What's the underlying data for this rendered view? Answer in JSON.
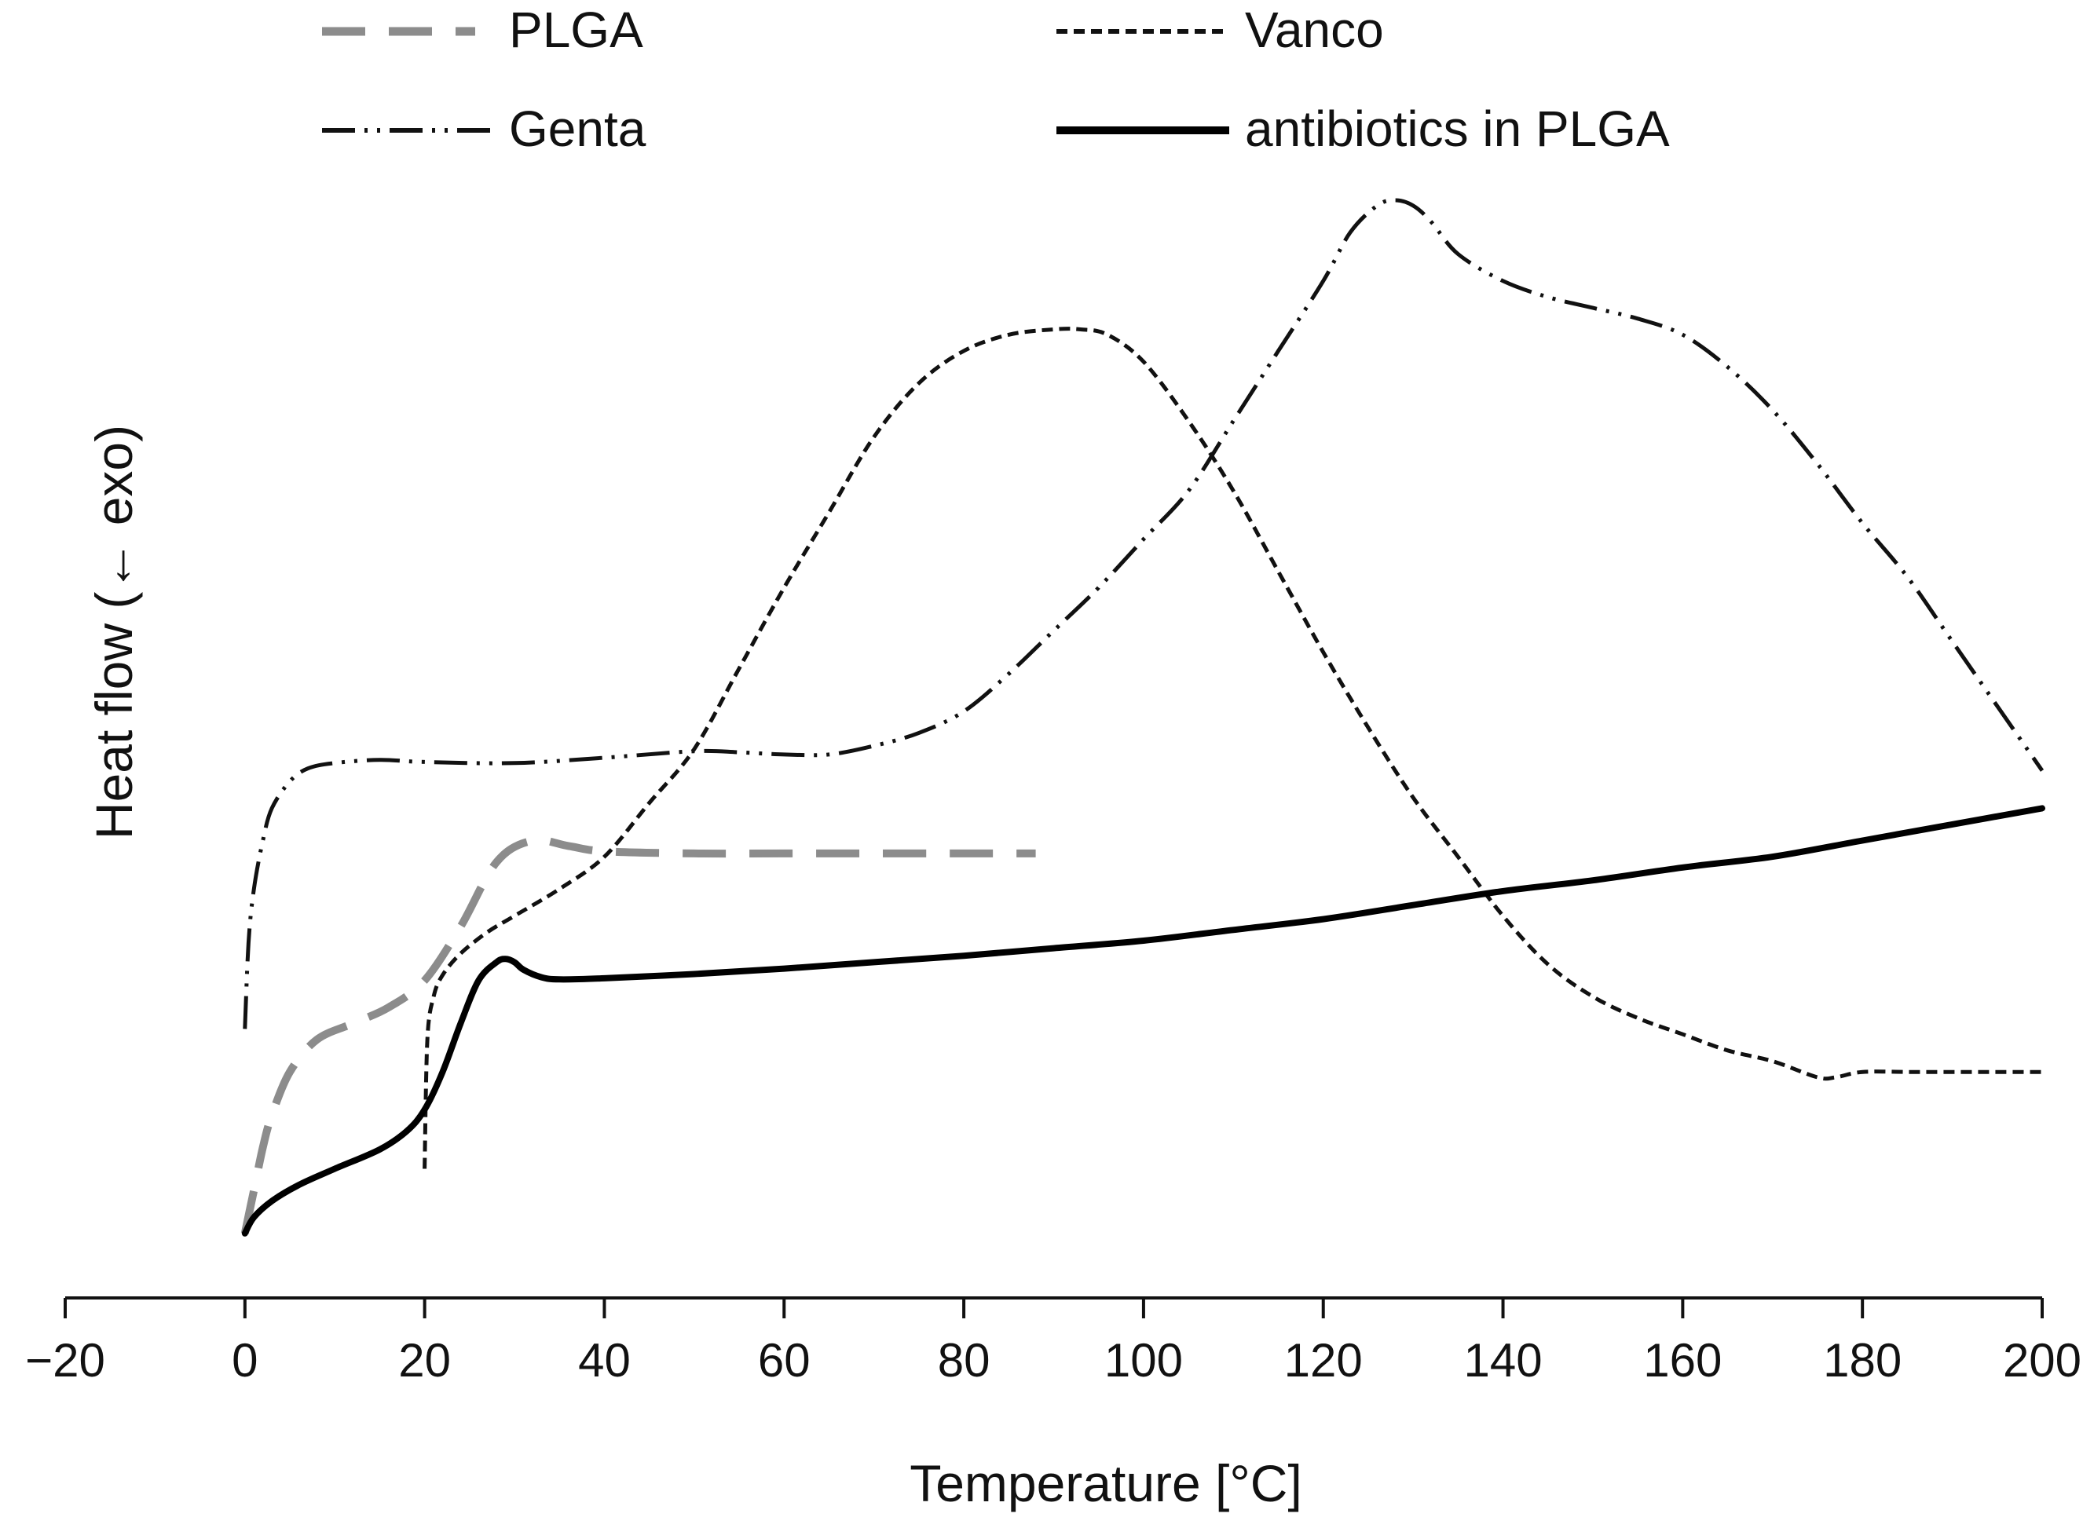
{
  "chart_data": {
    "type": "line",
    "title": "",
    "xlabel": "Temperature [°C]",
    "ylabel": "Heat flow (← exo)",
    "xlim": [
      -20,
      200
    ],
    "ylim": [
      0,
      100
    ],
    "xticks": [
      -20,
      0,
      20,
      40,
      60,
      80,
      100,
      120,
      140,
      160,
      180,
      200
    ],
    "xtick_labels": [
      "−20",
      "0",
      "20",
      "40",
      "60",
      "80",
      "100",
      "120",
      "140",
      "160",
      "180",
      "200"
    ],
    "y_ticks_shown": false,
    "grid": false,
    "legend_position": "top",
    "series": [
      {
        "name": "PLGA",
        "color": "#8c8c8c",
        "style": "long-dash",
        "x": [
          0,
          1,
          2,
          3,
          5,
          8,
          12,
          16,
          20,
          24,
          28,
          32,
          36,
          40,
          50,
          60,
          70,
          80,
          88
        ],
        "y": [
          6,
          10,
          14,
          17,
          21,
          24,
          25.5,
          27,
          29.5,
          34.5,
          40.5,
          42.5,
          42,
          41.5,
          41.3,
          41.3,
          41.3,
          41.3,
          41.3
        ]
      },
      {
        "name": "Vanco",
        "color": "#111111",
        "style": "short-dash",
        "x": [
          20,
          20.3,
          21,
          22,
          24,
          27,
          30,
          35,
          40,
          45,
          50,
          55,
          60,
          65,
          70,
          75,
          80,
          85,
          90,
          93,
          96,
          100,
          105,
          110,
          115,
          120,
          125,
          130,
          135,
          140,
          145,
          150,
          155,
          160,
          165,
          170,
          175,
          177,
          180,
          185,
          190,
          195,
          200
        ],
        "y": [
          12,
          24,
          28,
          30,
          32,
          34,
          35.5,
          38,
          41,
          46,
          51,
          58.5,
          66,
          73,
          80,
          85,
          88,
          89.5,
          90,
          90,
          89.5,
          87,
          81.5,
          75,
          67.5,
          60,
          53,
          46.5,
          41,
          35.5,
          31,
          28,
          26,
          24.5,
          23,
          22,
          20.5,
          20.5,
          21,
          21,
          21,
          21,
          21
        ]
      },
      {
        "name": "Genta",
        "color": "#111111",
        "style": "dash-dot-dot",
        "x": [
          0,
          0.4,
          1,
          2,
          3,
          5,
          7,
          10,
          15,
          20,
          30,
          40,
          50,
          55,
          60,
          65,
          70,
          75,
          80,
          85,
          90,
          95,
          100,
          105,
          110,
          115,
          120,
          123,
          126,
          128,
          130,
          132,
          135,
          140,
          145,
          150,
          155,
          160,
          165,
          170,
          175,
          180,
          185,
          190,
          195,
          200
        ],
        "y": [
          25,
          33,
          38,
          42.5,
          45.5,
          48,
          49.2,
          49.7,
          50,
          49.8,
          49.7,
          50.2,
          50.8,
          50.7,
          50.5,
          50.5,
          51.3,
          52.5,
          54.5,
          58,
          62,
          66,
          70.5,
          75,
          81.5,
          88,
          94.5,
          99,
          101.5,
          102,
          101.5,
          100,
          97,
          94.5,
          93,
          92,
          91,
          89.5,
          86.5,
          82.5,
          77.5,
          72,
          67,
          61,
          55,
          49
        ]
      },
      {
        "name": "antibiotics in PLGA",
        "color": "#000000",
        "style": "solid",
        "x": [
          0,
          1,
          3,
          6,
          10,
          15,
          18,
          20,
          22,
          24,
          26,
          28,
          29,
          30,
          31,
          33,
          35,
          40,
          50,
          60,
          70,
          80,
          90,
          100,
          110,
          120,
          130,
          140,
          150,
          160,
          170,
          180,
          190,
          200
        ],
        "y": [
          6,
          7.5,
          9,
          10.5,
          12,
          13.8,
          15.5,
          17.5,
          21,
          25.5,
          29.5,
          31.2,
          31.5,
          31.2,
          30.5,
          29.8,
          29.6,
          29.7,
          30.1,
          30.6,
          31.2,
          31.8,
          32.5,
          33.2,
          34.2,
          35.2,
          36.5,
          37.8,
          38.8,
          40,
          41,
          42.5,
          44,
          45.5
        ]
      }
    ]
  }
}
